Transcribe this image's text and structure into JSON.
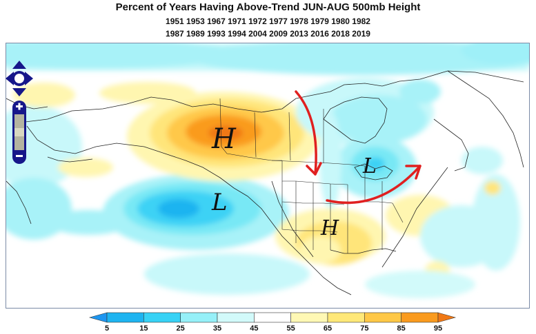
{
  "title": {
    "line1": "Percent of Years Having Above-Trend JUN-AUG 500mb Height",
    "line2": "1951 1953 1967 1971 1972 1977 1978 1979 1980 1982",
    "line3": "1987 1989 1993 1994 2004 2009 2013 2016 2018 2019"
  },
  "annotations": [
    {
      "id": "ridge-alaska",
      "text": "H"
    },
    {
      "id": "trough-pacific",
      "text": "L"
    },
    {
      "id": "trough-great-lakes",
      "text": "L"
    },
    {
      "id": "ridge-mexico",
      "text": "H"
    }
  ],
  "legend": {
    "ticks": [
      "5",
      "15",
      "25",
      "35",
      "45",
      "55",
      "65",
      "75",
      "85",
      "95"
    ],
    "colors": [
      "#1e96f0",
      "#1eb4f0",
      "#37d2f5",
      "#96f0f8",
      "#d2fafa",
      "#ffffff",
      "#fff8b4",
      "#ffe878",
      "#ffc846",
      "#fa9b1e",
      "#f07814"
    ]
  },
  "colors": {
    "arrow": "#e02020",
    "frame": "#7a8aa6",
    "nav": "#16178a"
  }
}
